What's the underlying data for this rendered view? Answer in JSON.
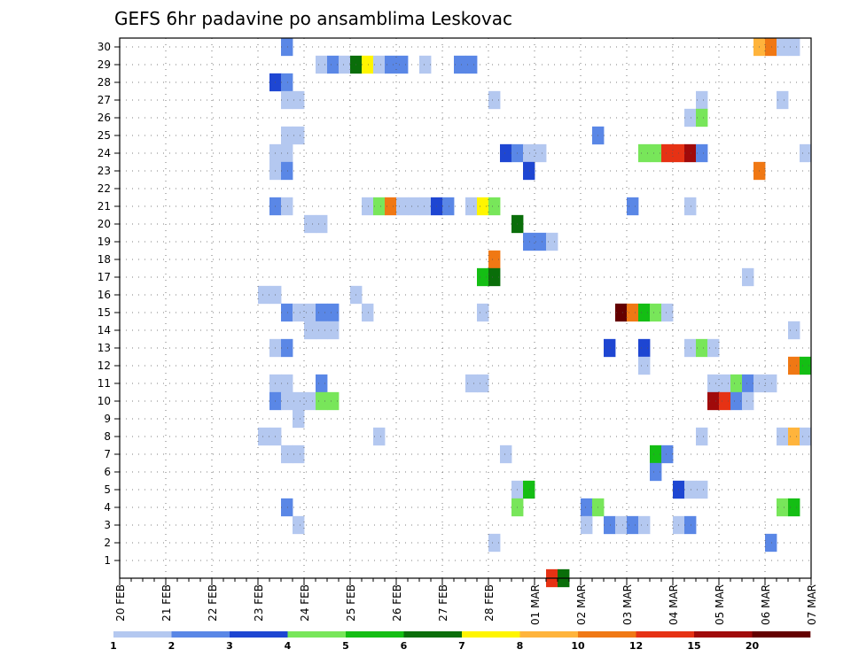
{
  "chart_data": {
    "type": "heatmap",
    "title": "GEFS 6hr padavine po ansamblima Leskovac",
    "x_labels": [
      "20 FEB",
      "21 FEB",
      "22 FEB",
      "23 FEB",
      "24 FEB",
      "25 FEB",
      "26 FEB",
      "27 FEB",
      "28 FEB",
      "01 MAR",
      "02 MAR",
      "03 MAR",
      "04 MAR",
      "05 MAR",
      "06 MAR",
      "07 MAR"
    ],
    "y_labels": [
      "1",
      "2",
      "3",
      "4",
      "5",
      "6",
      "7",
      "8",
      "9",
      "10",
      "11",
      "12",
      "13",
      "14",
      "15",
      "16",
      "17",
      "18",
      "19",
      "20",
      "21",
      "22",
      "23",
      "24",
      "25",
      "26",
      "27",
      "28",
      "29",
      "30"
    ],
    "x_unit": "6-hour step",
    "x_range": [
      0,
      60
    ],
    "y_range": [
      1,
      30
    ],
    "grid": true,
    "colorbar": {
      "labels": [
        "1",
        "2",
        "3",
        "4",
        "5",
        "6",
        "7",
        "8",
        "10",
        "12",
        "15",
        "20"
      ],
      "colors": [
        "#b4c8f0",
        "#5a87e6",
        "#1e46d2",
        "#78e65a",
        "#14be14",
        "#0a6e0a",
        "#fff500",
        "#ffb43c",
        "#f07814",
        "#e63214",
        "#a00a0a",
        "#640000"
      ]
    },
    "cells": [
      [
        14,
        30,
        1
      ],
      [
        55,
        30,
        7
      ],
      [
        56,
        30,
        8
      ],
      [
        57,
        30,
        0
      ],
      [
        58,
        30,
        0
      ],
      [
        17,
        29,
        0
      ],
      [
        18,
        29,
        1
      ],
      [
        19,
        29,
        0
      ],
      [
        20,
        29,
        5
      ],
      [
        21,
        29,
        6
      ],
      [
        22,
        29,
        0
      ],
      [
        23,
        29,
        1
      ],
      [
        24,
        29,
        1
      ],
      [
        26,
        29,
        0
      ],
      [
        29,
        29,
        1
      ],
      [
        30,
        29,
        1
      ],
      [
        13,
        28,
        2
      ],
      [
        14,
        28,
        1
      ],
      [
        14,
        27,
        0
      ],
      [
        15,
        27,
        0
      ],
      [
        32,
        27,
        0
      ],
      [
        50,
        27,
        0
      ],
      [
        57,
        27,
        0
      ],
      [
        49,
        26,
        0
      ],
      [
        50,
        26,
        3
      ],
      [
        14,
        25,
        0
      ],
      [
        15,
        25,
        0
      ],
      [
        41,
        25,
        1
      ],
      [
        13,
        24,
        0
      ],
      [
        14,
        24,
        0
      ],
      [
        33,
        24,
        2
      ],
      [
        34,
        24,
        1
      ],
      [
        35,
        24,
        0
      ],
      [
        36,
        24,
        0
      ],
      [
        45,
        24,
        3
      ],
      [
        46,
        24,
        3
      ],
      [
        47,
        24,
        9
      ],
      [
        48,
        24,
        9
      ],
      [
        49,
        24,
        10
      ],
      [
        50,
        24,
        1
      ],
      [
        59,
        24,
        0
      ],
      [
        13,
        23,
        0
      ],
      [
        14,
        23,
        1
      ],
      [
        35,
        23,
        2
      ],
      [
        55,
        23,
        8
      ],
      [
        13,
        21,
        1
      ],
      [
        14,
        21,
        0
      ],
      [
        21,
        21,
        0
      ],
      [
        22,
        21,
        3
      ],
      [
        23,
        21,
        8
      ],
      [
        24,
        21,
        0
      ],
      [
        25,
        21,
        0
      ],
      [
        26,
        21,
        0
      ],
      [
        27,
        21,
        2
      ],
      [
        28,
        21,
        1
      ],
      [
        30,
        21,
        0
      ],
      [
        31,
        21,
        6
      ],
      [
        32,
        21,
        3
      ],
      [
        44,
        21,
        1
      ],
      [
        49,
        21,
        0
      ],
      [
        16,
        20,
        0
      ],
      [
        17,
        20,
        0
      ],
      [
        34,
        20,
        5
      ],
      [
        35,
        19,
        1
      ],
      [
        36,
        19,
        1
      ],
      [
        37,
        19,
        0
      ],
      [
        32,
        18,
        8
      ],
      [
        31,
        17,
        4
      ],
      [
        32,
        17,
        5
      ],
      [
        54,
        17,
        0
      ],
      [
        12,
        16,
        0
      ],
      [
        13,
        16,
        0
      ],
      [
        20,
        16,
        0
      ],
      [
        14,
        15,
        1
      ],
      [
        15,
        15,
        0
      ],
      [
        16,
        15,
        0
      ],
      [
        17,
        15,
        1
      ],
      [
        18,
        15,
        1
      ],
      [
        21,
        15,
        0
      ],
      [
        31,
        15,
        0
      ],
      [
        43,
        15,
        11
      ],
      [
        44,
        15,
        8
      ],
      [
        45,
        15,
        4
      ],
      [
        46,
        15,
        3
      ],
      [
        47,
        15,
        0
      ],
      [
        16,
        14,
        0
      ],
      [
        17,
        14,
        0
      ],
      [
        18,
        14,
        0
      ],
      [
        58,
        14,
        0
      ],
      [
        13,
        13,
        0
      ],
      [
        14,
        13,
        1
      ],
      [
        42,
        13,
        2
      ],
      [
        45,
        13,
        2
      ],
      [
        49,
        13,
        0
      ],
      [
        50,
        13,
        3
      ],
      [
        51,
        13,
        0
      ],
      [
        45,
        12,
        0
      ],
      [
        58,
        12,
        8
      ],
      [
        59,
        12,
        4
      ],
      [
        13,
        11,
        0
      ],
      [
        14,
        11,
        0
      ],
      [
        17,
        11,
        1
      ],
      [
        30,
        11,
        0
      ],
      [
        31,
        11,
        0
      ],
      [
        51,
        11,
        0
      ],
      [
        52,
        11,
        0
      ],
      [
        53,
        11,
        3
      ],
      [
        54,
        11,
        1
      ],
      [
        55,
        11,
        0
      ],
      [
        56,
        11,
        0
      ],
      [
        13,
        10,
        1
      ],
      [
        14,
        10,
        0
      ],
      [
        15,
        10,
        0
      ],
      [
        16,
        10,
        0
      ],
      [
        17,
        10,
        3
      ],
      [
        18,
        10,
        3
      ],
      [
        51,
        10,
        10
      ],
      [
        52,
        10,
        9
      ],
      [
        53,
        10,
        1
      ],
      [
        54,
        10,
        0
      ],
      [
        15,
        9,
        0
      ],
      [
        12,
        8,
        0
      ],
      [
        13,
        8,
        0
      ],
      [
        22,
        8,
        0
      ],
      [
        50,
        8,
        0
      ],
      [
        57,
        8,
        0
      ],
      [
        58,
        8,
        7
      ],
      [
        59,
        8,
        0
      ],
      [
        14,
        7,
        0
      ],
      [
        15,
        7,
        0
      ],
      [
        33,
        7,
        0
      ],
      [
        46,
        7,
        4
      ],
      [
        47,
        7,
        1
      ],
      [
        46,
        6,
        1
      ],
      [
        34,
        5,
        0
      ],
      [
        35,
        5,
        4
      ],
      [
        48,
        5,
        2
      ],
      [
        49,
        5,
        0
      ],
      [
        50,
        5,
        0
      ],
      [
        14,
        4,
        1
      ],
      [
        34,
        4,
        3
      ],
      [
        40,
        4,
        1
      ],
      [
        41,
        4,
        3
      ],
      [
        57,
        4,
        3
      ],
      [
        58,
        4,
        4
      ],
      [
        15,
        3,
        0
      ],
      [
        40,
        3,
        0
      ],
      [
        42,
        3,
        1
      ],
      [
        43,
        3,
        0
      ],
      [
        44,
        3,
        1
      ],
      [
        45,
        3,
        0
      ],
      [
        48,
        3,
        0
      ],
      [
        49,
        3,
        1
      ],
      [
        32,
        2,
        0
      ],
      [
        56,
        2,
        1
      ],
      [
        37,
        0,
        9
      ],
      [
        38,
        0,
        5
      ]
    ]
  }
}
